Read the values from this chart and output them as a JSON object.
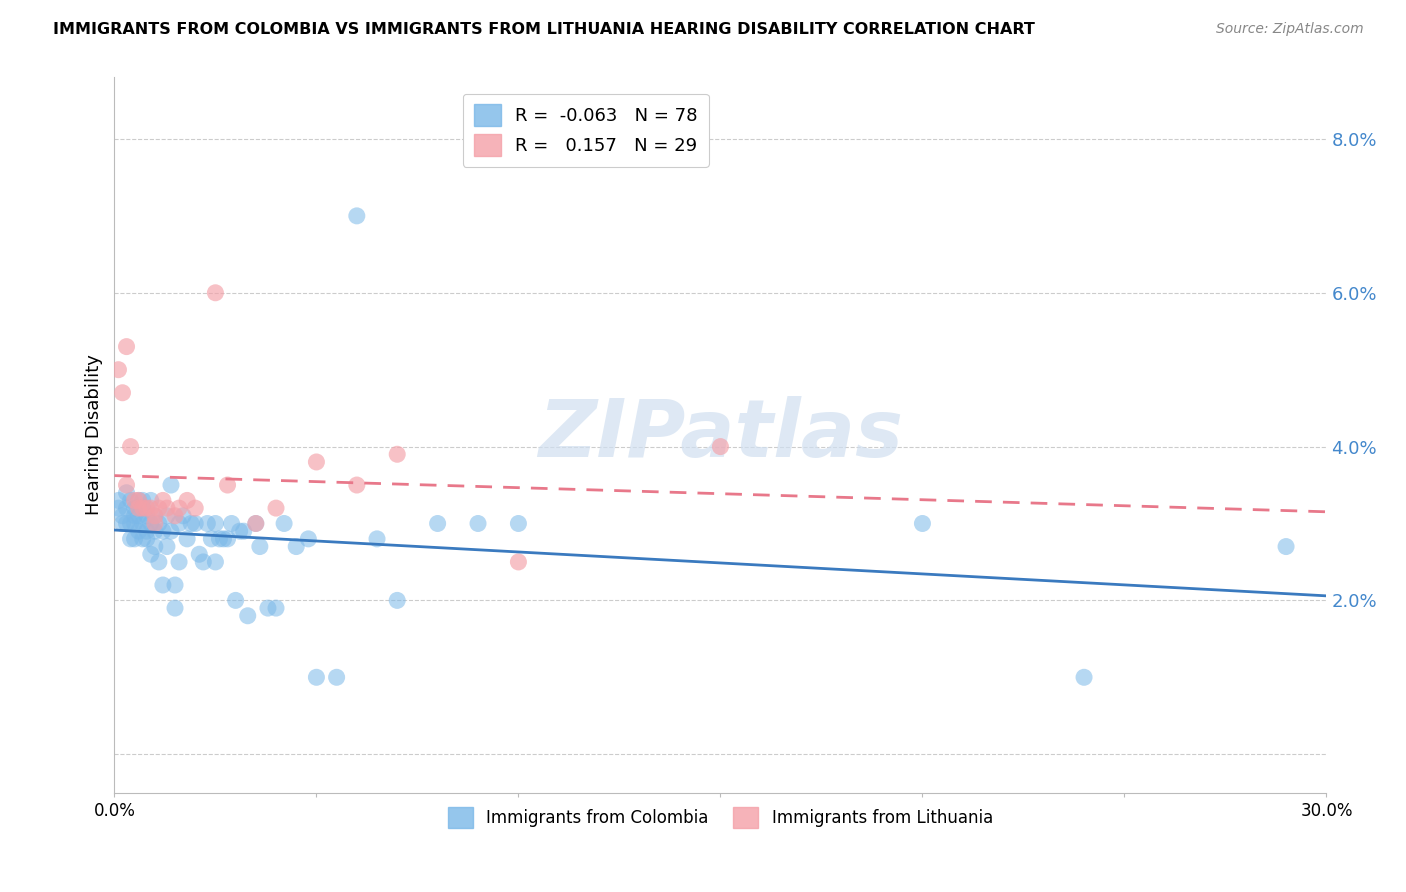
{
  "title": "IMMIGRANTS FROM COLOMBIA VS IMMIGRANTS FROM LITHUANIA HEARING DISABILITY CORRELATION CHART",
  "source": "Source: ZipAtlas.com",
  "ylabel": "Hearing Disability",
  "yticks": [
    0.0,
    0.02,
    0.04,
    0.06,
    0.08
  ],
  "ytick_labels": [
    "",
    "2.0%",
    "4.0%",
    "6.0%",
    "8.0%"
  ],
  "xlim": [
    0.0,
    0.3
  ],
  "ylim": [
    -0.005,
    0.088
  ],
  "colombia_R": -0.063,
  "colombia_N": 78,
  "lithuania_R": 0.157,
  "lithuania_N": 29,
  "colombia_color": "#7bb8e8",
  "lithuania_color": "#f4a0a8",
  "colombia_line_color": "#3a7abf",
  "lithuania_line_color": "#e8788a",
  "watermark_zip": "ZIP",
  "watermark_atlas": "atlas",
  "colombia_x": [
    0.001,
    0.001,
    0.002,
    0.002,
    0.003,
    0.003,
    0.003,
    0.004,
    0.004,
    0.004,
    0.005,
    0.005,
    0.005,
    0.005,
    0.006,
    0.006,
    0.006,
    0.007,
    0.007,
    0.007,
    0.007,
    0.008,
    0.008,
    0.008,
    0.009,
    0.009,
    0.009,
    0.01,
    0.01,
    0.01,
    0.011,
    0.011,
    0.012,
    0.012,
    0.013,
    0.013,
    0.014,
    0.014,
    0.015,
    0.015,
    0.016,
    0.016,
    0.017,
    0.018,
    0.019,
    0.02,
    0.021,
    0.022,
    0.023,
    0.024,
    0.025,
    0.025,
    0.026,
    0.027,
    0.028,
    0.029,
    0.03,
    0.031,
    0.032,
    0.033,
    0.035,
    0.036,
    0.038,
    0.04,
    0.042,
    0.045,
    0.048,
    0.05,
    0.055,
    0.06,
    0.065,
    0.07,
    0.08,
    0.09,
    0.1,
    0.2,
    0.24,
    0.29
  ],
  "colombia_y": [
    0.033,
    0.032,
    0.031,
    0.03,
    0.034,
    0.03,
    0.032,
    0.03,
    0.028,
    0.033,
    0.031,
    0.028,
    0.03,
    0.032,
    0.033,
    0.029,
    0.031,
    0.032,
    0.03,
    0.028,
    0.033,
    0.029,
    0.031,
    0.028,
    0.033,
    0.03,
    0.026,
    0.031,
    0.029,
    0.027,
    0.03,
    0.025,
    0.029,
    0.022,
    0.031,
    0.027,
    0.035,
    0.029,
    0.019,
    0.022,
    0.03,
    0.025,
    0.031,
    0.028,
    0.03,
    0.03,
    0.026,
    0.025,
    0.03,
    0.028,
    0.03,
    0.025,
    0.028,
    0.028,
    0.028,
    0.03,
    0.02,
    0.029,
    0.029,
    0.018,
    0.03,
    0.027,
    0.019,
    0.019,
    0.03,
    0.027,
    0.028,
    0.01,
    0.01,
    0.07,
    0.028,
    0.02,
    0.03,
    0.03,
    0.03,
    0.03,
    0.01,
    0.027
  ],
  "lithuania_x": [
    0.001,
    0.002,
    0.003,
    0.003,
    0.004,
    0.005,
    0.006,
    0.006,
    0.007,
    0.008,
    0.009,
    0.01,
    0.01,
    0.011,
    0.012,
    0.013,
    0.015,
    0.016,
    0.018,
    0.02,
    0.025,
    0.028,
    0.035,
    0.04,
    0.05,
    0.06,
    0.07,
    0.1,
    0.15
  ],
  "lithuania_y": [
    0.05,
    0.047,
    0.035,
    0.053,
    0.04,
    0.033,
    0.033,
    0.032,
    0.032,
    0.032,
    0.032,
    0.03,
    0.031,
    0.032,
    0.033,
    0.032,
    0.031,
    0.032,
    0.033,
    0.032,
    0.06,
    0.035,
    0.03,
    0.032,
    0.038,
    0.035,
    0.039,
    0.025,
    0.04
  ]
}
